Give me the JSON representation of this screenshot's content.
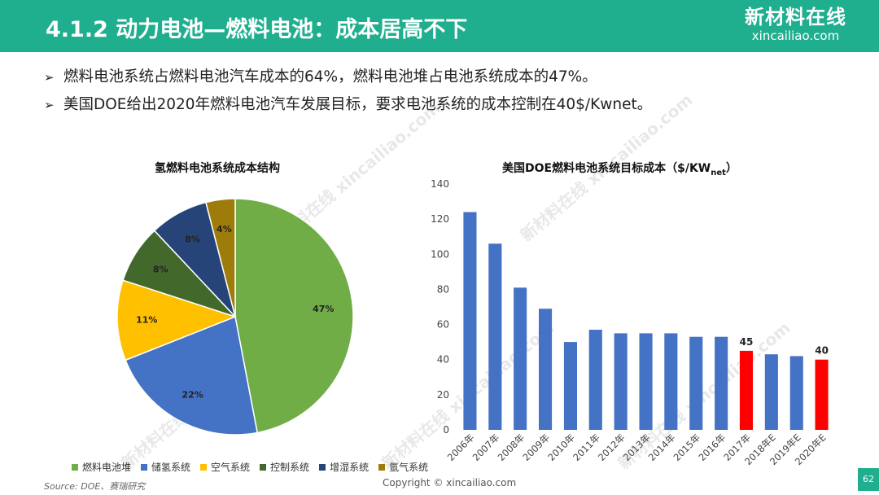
{
  "header": {
    "title": "4.1.2 动力电池—燃料电池：成本居高不下",
    "logo_cn": "新材料在线",
    "logo_en": "xincailiao.com"
  },
  "bullets": [
    "燃料电池系统占燃料电池汽车成本的64%，燃料电池堆占电池系统成本的47%。",
    "美国DOE给出2020年燃料电池汽车发展目标，要求电池系统的成本控制在40$/Kwnet。"
  ],
  "pie_title": "氢燃料电池系统成本结构",
  "bar_title_main": "美国DOE燃料电池系统目标成本（$/KW",
  "bar_title_sub": "net",
  "bar_title_end": "）",
  "chart_data": [
    {
      "type": "pie",
      "title": "氢燃料电池系统成本结构",
      "categories": [
        "燃料电池堆",
        "储氢系统",
        "空气系统",
        "控制系统",
        "增湿系统",
        "氩气系统"
      ],
      "values": [
        47,
        22,
        11,
        8,
        8,
        4
      ],
      "labels": [
        "47%",
        "22%",
        "11%",
        "8%",
        "8%",
        "4%"
      ],
      "colors": [
        "#70ad47",
        "#4472c4",
        "#ffc000",
        "#43682b",
        "#264478",
        "#9e7c0c"
      ],
      "legend_position": "bottom"
    },
    {
      "type": "bar",
      "title": "美国DOE燃料电池系统目标成本（$/KWnet）",
      "categories": [
        "2006年",
        "2007年",
        "2008年",
        "2009年",
        "2010年",
        "2011年",
        "2012年",
        "2013年",
        "2014年",
        "2015年",
        "2016年",
        "2017年",
        "2018年E",
        "2019年E",
        "2020年E"
      ],
      "values": [
        124,
        106,
        81,
        69,
        50,
        57,
        55,
        55,
        55,
        53,
        53,
        45,
        43,
        42,
        40
      ],
      "highlight": [
        11,
        14
      ],
      "data_labels": {
        "11": "45",
        "14": "40"
      },
      "colors": {
        "normal": "#4472c4",
        "highlight": "#ff0000"
      },
      "ylim": [
        0,
        140
      ],
      "yticks": [
        0,
        20,
        40,
        60,
        80,
        100,
        120,
        140
      ],
      "grid": false
    }
  ],
  "footer": {
    "source": "Source:  DOE、赛瑞研究",
    "copyright": "Copyright © xincailiao.com",
    "page": "62"
  },
  "watermarks": [
    "新材料在线 xincailiao.com"
  ]
}
